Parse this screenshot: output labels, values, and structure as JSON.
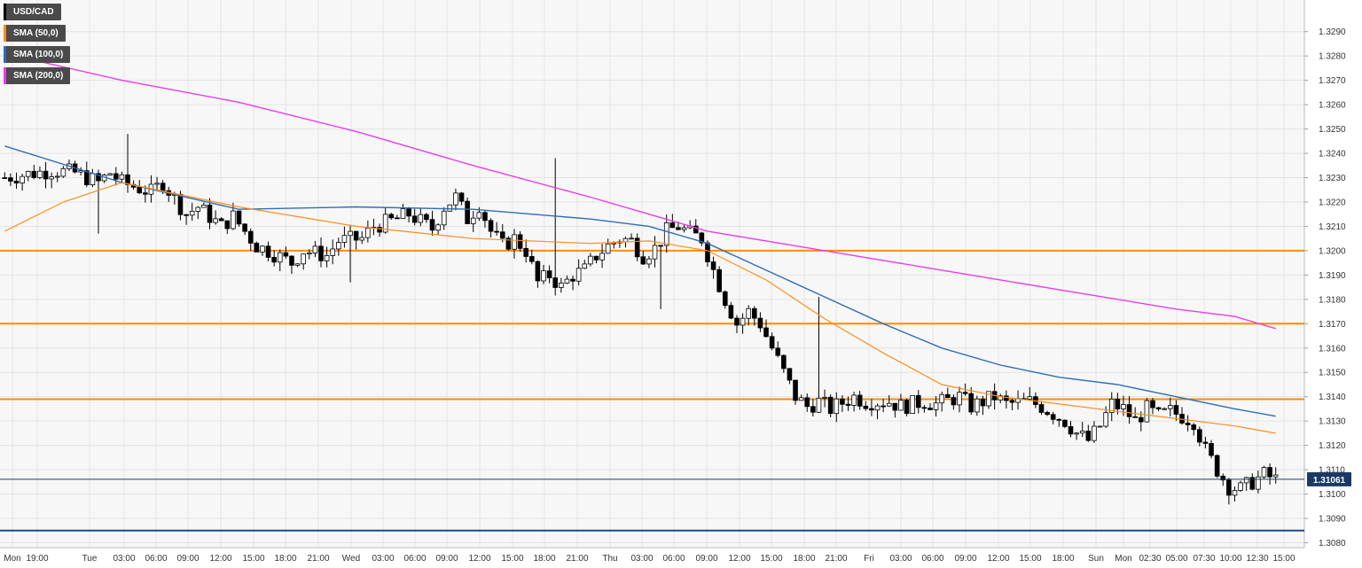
{
  "chart_data": {
    "type": "candlestick",
    "symbol": "USD/CAD",
    "legend": [
      {
        "label": "USD/CAD",
        "color": "#000000"
      },
      {
        "label": "SMA (50,0)",
        "color": "#ff8c1a"
      },
      {
        "label": "SMA (100,0)",
        "color": "#2f6db5"
      },
      {
        "label": "SMA (200,0)",
        "color": "#e83ce8"
      }
    ],
    "ylim": [
      1.3078,
      1.3303
    ],
    "y_ticks": [
      "1.3080",
      "1.3090",
      "1.3100",
      "1.3110",
      "1.3120",
      "1.3130",
      "1.3140",
      "1.3150",
      "1.3160",
      "1.3170",
      "1.3180",
      "1.3190",
      "1.3200",
      "1.3210",
      "1.3220",
      "1.3230",
      "1.3240",
      "1.3250",
      "1.3260",
      "1.3270",
      "1.3280",
      "1.3290"
    ],
    "x_ticks": [
      "Mon",
      "19:00",
      "Tue",
      "03:00",
      "06:00",
      "09:00",
      "12:00",
      "15:00",
      "18:00",
      "21:00",
      "Wed",
      "03:00",
      "06:00",
      "09:00",
      "12:00",
      "15:00",
      "18:00",
      "21:00",
      "Thu",
      "03:00",
      "06:00",
      "09:00",
      "12:00",
      "15:00",
      "18:00",
      "21:00",
      "Fri",
      "03:00",
      "06:00",
      "09:00",
      "12:00",
      "15:00",
      "18:00",
      "Sun",
      "Mon",
      "02:30",
      "05:00",
      "07:30",
      "10:00",
      "12:30",
      "15:00"
    ],
    "current_price": "1.31061",
    "current_price_value": 1.31061,
    "horizontal_levels": [
      {
        "value": 1.32,
        "color": "#ff8c00"
      },
      {
        "value": 1.317,
        "color": "#ff8c00"
      },
      {
        "value": 1.3139,
        "color": "#ff8c00"
      },
      {
        "value": 1.3085,
        "color": "#1a4a8c"
      }
    ],
    "close_path": [
      [
        0,
        1.323
      ],
      [
        8,
        1.3233
      ],
      [
        12,
        1.3232
      ],
      [
        16,
        1.3228
      ],
      [
        18,
        1.3232
      ],
      [
        20,
        1.3228
      ],
      [
        25,
        1.3224
      ],
      [
        27,
        1.3228
      ],
      [
        31,
        1.3215
      ],
      [
        33,
        1.3218
      ],
      [
        37,
        1.321
      ],
      [
        39,
        1.3214
      ],
      [
        43,
        1.3202
      ],
      [
        45,
        1.32
      ],
      [
        49,
        1.3195
      ],
      [
        51,
        1.32
      ],
      [
        55,
        1.3198
      ],
      [
        57,
        1.3204
      ],
      [
        61,
        1.3205
      ],
      [
        63,
        1.321
      ],
      [
        67,
        1.3213
      ],
      [
        69,
        1.3215
      ],
      [
        73,
        1.3209
      ],
      [
        75,
        1.3218
      ],
      [
        77,
        1.3222
      ],
      [
        79,
        1.3213
      ],
      [
        81,
        1.3219
      ],
      [
        83,
        1.3208
      ],
      [
        85,
        1.3202
      ],
      [
        87,
        1.3205
      ],
      [
        89,
        1.32
      ],
      [
        91,
        1.3187
      ],
      [
        93,
        1.319
      ],
      [
        95,
        1.3185
      ],
      [
        97,
        1.319
      ],
      [
        99,
        1.3192
      ],
      [
        101,
        1.3198
      ],
      [
        103,
        1.3202
      ],
      [
        105,
        1.3205
      ],
      [
        107,
        1.3204
      ],
      [
        109,
        1.3198
      ],
      [
        111,
        1.3201
      ],
      [
        113,
        1.3208
      ],
      [
        115,
        1.321
      ],
      [
        117,
        1.3207
      ],
      [
        119,
        1.3205
      ],
      [
        121,
        1.3192
      ],
      [
        123,
        1.318
      ],
      [
        125,
        1.317
      ],
      [
        127,
        1.3175
      ],
      [
        129,
        1.317
      ],
      [
        131,
        1.316
      ],
      [
        133,
        1.315
      ],
      [
        135,
        1.314
      ],
      [
        137,
        1.3136
      ],
      [
        139,
        1.3138
      ],
      [
        141,
        1.3135
      ],
      [
        145,
        1.314
      ],
      [
        147,
        1.3138
      ],
      [
        151,
        1.3138
      ],
      [
        153,
        1.3136
      ],
      [
        157,
        1.3138
      ],
      [
        159,
        1.3137
      ],
      [
        163,
        1.314
      ],
      [
        165,
        1.3136
      ],
      [
        169,
        1.314
      ],
      [
        171,
        1.3137
      ],
      [
        175,
        1.3138
      ],
      [
        177,
        1.3136
      ],
      [
        181,
        1.313
      ],
      [
        183,
        1.3125
      ],
      [
        185,
        1.3122
      ],
      [
        187,
        1.3128
      ],
      [
        189,
        1.3137
      ],
      [
        191,
        1.3135
      ],
      [
        193,
        1.313
      ],
      [
        195,
        1.3135
      ],
      [
        197,
        1.3132
      ],
      [
        199,
        1.3134
      ],
      [
        201,
        1.3132
      ],
      [
        203,
        1.313
      ],
      [
        205,
        1.3118
      ],
      [
        207,
        1.311
      ],
      [
        209,
        1.3103
      ],
      [
        211,
        1.3102
      ],
      [
        213,
        1.3105
      ],
      [
        215,
        1.3108
      ],
      [
        217,
        1.3106
      ]
    ],
    "candles": [],
    "sma50": [
      [
        0,
        1.3208
      ],
      [
        10,
        1.322
      ],
      [
        20,
        1.3228
      ],
      [
        40,
        1.3218
      ],
      [
        60,
        1.321
      ],
      [
        80,
        1.3205
      ],
      [
        100,
        1.3203
      ],
      [
        110,
        1.3204
      ],
      [
        120,
        1.32
      ],
      [
        130,
        1.3188
      ],
      [
        140,
        1.3172
      ],
      [
        150,
        1.3158
      ],
      [
        160,
        1.3145
      ],
      [
        170,
        1.314
      ],
      [
        180,
        1.3137
      ],
      [
        190,
        1.3134
      ],
      [
        200,
        1.3131
      ],
      [
        210,
        1.3128
      ],
      [
        217,
        1.3125
      ]
    ],
    "sma100": [
      [
        0,
        1.3243
      ],
      [
        20,
        1.3228
      ],
      [
        40,
        1.3217
      ],
      [
        60,
        1.3218
      ],
      [
        80,
        1.3217
      ],
      [
        100,
        1.3213
      ],
      [
        110,
        1.321
      ],
      [
        120,
        1.3203
      ],
      [
        130,
        1.3192
      ],
      [
        140,
        1.3181
      ],
      [
        150,
        1.317
      ],
      [
        160,
        1.316
      ],
      [
        170,
        1.3153
      ],
      [
        180,
        1.3148
      ],
      [
        190,
        1.3145
      ],
      [
        200,
        1.314
      ],
      [
        210,
        1.3135
      ],
      [
        217,
        1.3132
      ]
    ],
    "sma200": [
      [
        0,
        1.3281
      ],
      [
        20,
        1.327
      ],
      [
        40,
        1.3261
      ],
      [
        60,
        1.3249
      ],
      [
        80,
        1.3235
      ],
      [
        100,
        1.3222
      ],
      [
        110,
        1.3215
      ],
      [
        120,
        1.3208
      ],
      [
        130,
        1.3204
      ],
      [
        140,
        1.32
      ],
      [
        150,
        1.3196
      ],
      [
        160,
        1.3192
      ],
      [
        170,
        1.3188
      ],
      [
        180,
        1.3184
      ],
      [
        190,
        1.318
      ],
      [
        200,
        1.3176
      ],
      [
        210,
        1.3173
      ],
      [
        217,
        1.3168
      ]
    ]
  }
}
